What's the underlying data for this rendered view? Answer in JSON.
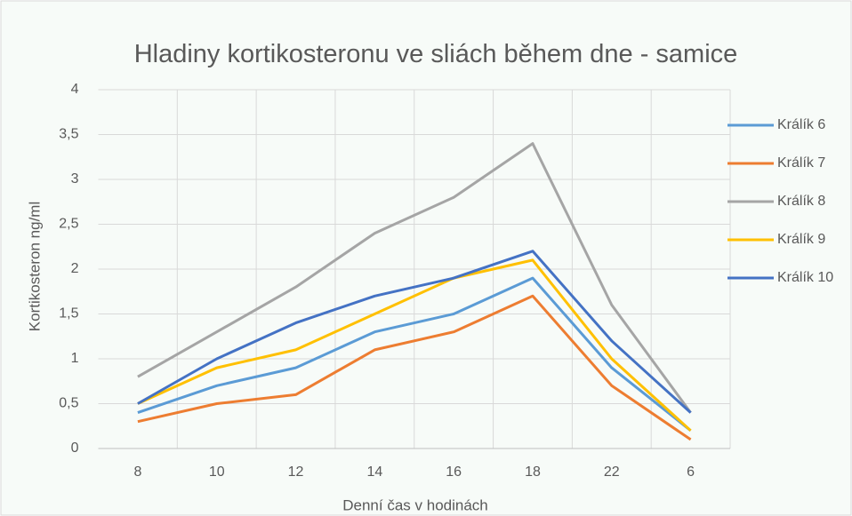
{
  "chart_data": {
    "type": "line",
    "title": "Hladiny kortikosteronu ve sliách během dne - samice",
    "x_label": "Denní čas v hodinách",
    "y_label": "Kortikosteron ng/ml",
    "categories": [
      "8",
      "10",
      "12",
      "14",
      "16",
      "18",
      "22",
      "6"
    ],
    "series": [
      {
        "name": "Králík 6",
        "color": "#5b9bd5",
        "values": [
          0.4,
          0.7,
          0.9,
          1.3,
          1.5,
          1.9,
          0.9,
          0.2
        ]
      },
      {
        "name": "Králík 7",
        "color": "#ed7d31",
        "values": [
          0.3,
          0.5,
          0.6,
          1.1,
          1.3,
          1.7,
          0.7,
          0.1
        ]
      },
      {
        "name": "Králík 8",
        "color": "#a5a5a5",
        "values": [
          0.8,
          1.3,
          1.8,
          2.4,
          2.8,
          3.4,
          1.6,
          0.4
        ]
      },
      {
        "name": "Králík 9",
        "color": "#ffc000",
        "values": [
          0.5,
          0.9,
          1.1,
          1.5,
          1.9,
          2.1,
          1.0,
          0.2
        ]
      },
      {
        "name": "Králík 10",
        "color": "#4472c4",
        "values": [
          0.5,
          1.0,
          1.4,
          1.7,
          1.9,
          2.2,
          1.2,
          0.4
        ]
      }
    ],
    "ylim": [
      0,
      4
    ],
    "yticks": [
      0,
      {
        "value": 0.5,
        "label": "0,5"
      },
      1,
      {
        "value": 1.5,
        "label": "1,5"
      },
      2,
      {
        "value": 2.5,
        "label": "2,5"
      },
      3,
      {
        "value": 3.5,
        "label": "3,5"
      },
      4
    ],
    "grid": true,
    "legend": "right"
  }
}
